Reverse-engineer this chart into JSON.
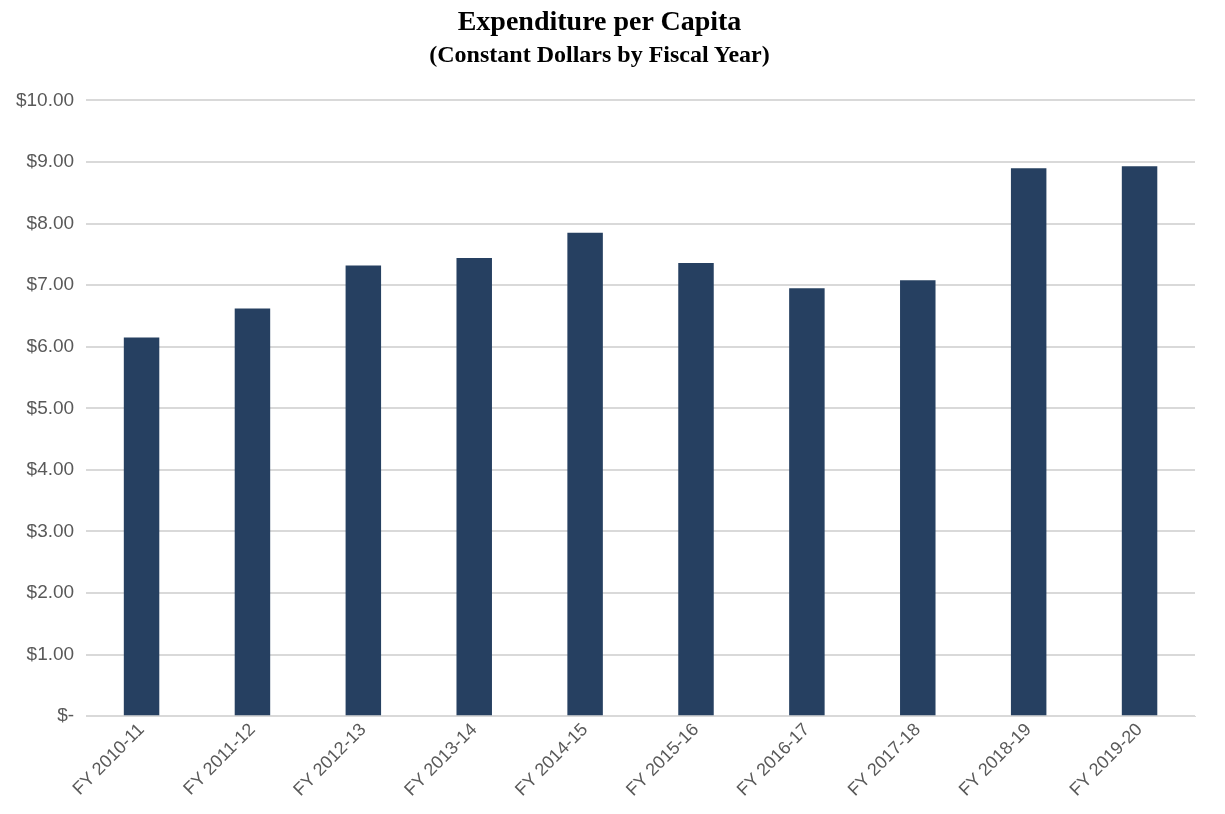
{
  "chart_data": {
    "type": "bar",
    "title": "Expenditure per Capita",
    "subtitle": "(Constant Dollars by Fiscal Year)",
    "categories": [
      "FY 2010-11",
      "FY 2011-12",
      "FY 2012-13",
      "FY 2013-14",
      "FY 2014-15",
      "FY 2015-16",
      "FY 2016-17",
      "FY 2017-18",
      "FY 2018-19",
      "FY 2019-20"
    ],
    "values": [
      6.15,
      6.62,
      7.32,
      7.44,
      7.85,
      7.36,
      6.95,
      7.08,
      8.9,
      8.93
    ],
    "color": "#264061",
    "ylim": [
      0,
      10
    ],
    "yticks": [
      {
        "value": 0,
        "label": "$-"
      },
      {
        "value": 1,
        "label": "$1.00"
      },
      {
        "value": 2,
        "label": "$2.00"
      },
      {
        "value": 3,
        "label": "$3.00"
      },
      {
        "value": 4,
        "label": "$4.00"
      },
      {
        "value": 5,
        "label": "$5.00"
      },
      {
        "value": 6,
        "label": "$6.00"
      },
      {
        "value": 7,
        "label": "$7.00"
      },
      {
        "value": 8,
        "label": "$8.00"
      },
      {
        "value": 9,
        "label": "$9.00"
      },
      {
        "value": 10,
        "label": "$10.00"
      }
    ],
    "grid": "y",
    "legend": false
  }
}
